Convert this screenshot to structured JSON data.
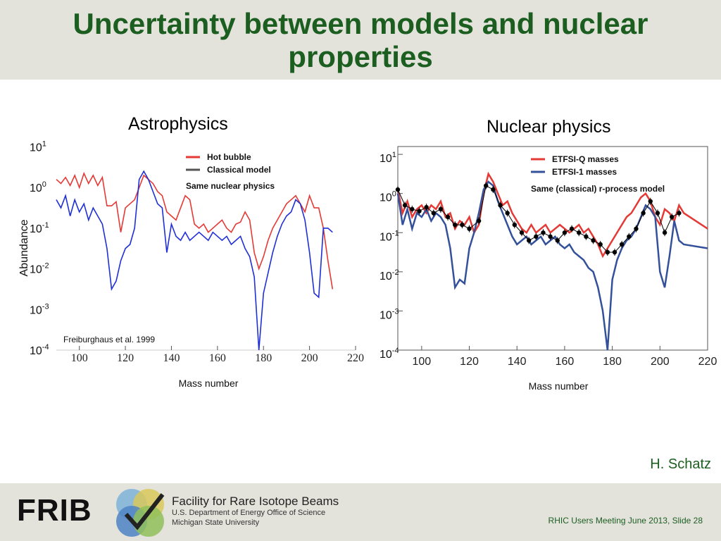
{
  "slide": {
    "title": "Uncertainty between models and nuclear properties",
    "author": "H. Schatz",
    "footer_note": "RHIC Users Meeting June 2013, Slide 28",
    "logo": {
      "text": "FRIB",
      "line1": "Facility for Rare Isotope Beams",
      "line2": "U.S. Department of Energy Office of Science",
      "line3": "Michigan State University"
    },
    "colors": {
      "title": "#1b5e20",
      "band": "#e3e3dc",
      "red": "#e53935",
      "blue": "#1f2fd6",
      "navy": "#33509a"
    }
  },
  "chart_data": [
    {
      "type": "line",
      "title": "Astrophysics",
      "ylabel": "Abundance",
      "xlabel": "Mass number",
      "xlim": [
        90,
        220
      ],
      "ylim_log10": [
        -4,
        1.2
      ],
      "x_ticks": [
        "100",
        "120",
        "140",
        "160",
        "180",
        "200",
        "220"
      ],
      "y_ticks": [
        {
          "base": "10",
          "exp": "1"
        },
        {
          "base": "10",
          "exp": "0"
        },
        {
          "base": "10",
          "exp": "-1"
        },
        {
          "base": "10",
          "exp": "-2"
        },
        {
          "base": "10",
          "exp": "-3"
        },
        {
          "base": "10",
          "exp": "-4"
        }
      ],
      "legend": [
        "Hot bubble",
        "Classical model"
      ],
      "note": "Same nuclear physics",
      "citation": "Freiburghaus et al. 1999",
      "series": [
        {
          "name": "Hot bubble",
          "color": "#e53935",
          "x": [
            90,
            92,
            94,
            96,
            98,
            100,
            102,
            104,
            106,
            108,
            110,
            112,
            114,
            116,
            118,
            120,
            122,
            124,
            126,
            128,
            130,
            132,
            134,
            136,
            138,
            140,
            142,
            144,
            146,
            148,
            150,
            152,
            154,
            156,
            158,
            160,
            162,
            164,
            166,
            168,
            170,
            172,
            174,
            176,
            178,
            180,
            182,
            184,
            186,
            188,
            190,
            192,
            194,
            196,
            198,
            200,
            202,
            204,
            206,
            208,
            210
          ],
          "y": [
            0.2,
            0.1,
            0.25,
            0.05,
            0.3,
            0.0,
            0.35,
            0.1,
            0.3,
            0.05,
            0.25,
            -0.45,
            -0.45,
            -0.35,
            -1.1,
            -0.5,
            -0.4,
            -0.3,
            0.0,
            0.3,
            0.2,
            0.1,
            -0.1,
            -0.2,
            -0.6,
            -0.7,
            -0.8,
            -0.5,
            -0.2,
            -0.3,
            -0.9,
            -1.0,
            -0.9,
            -1.1,
            -1.0,
            -0.9,
            -0.8,
            -1.0,
            -1.1,
            -0.9,
            -0.85,
            -0.6,
            -0.8,
            -1.6,
            -2.0,
            -1.7,
            -1.3,
            -1.0,
            -0.8,
            -0.6,
            -0.4,
            -0.3,
            -0.2,
            -0.4,
            -0.6,
            -0.2,
            -0.5,
            -0.5,
            -1.0,
            -1.8,
            -2.5
          ]
        },
        {
          "name": "Classical model",
          "color": "#1f2fd6",
          "x": [
            90,
            92,
            94,
            96,
            98,
            100,
            102,
            104,
            106,
            108,
            110,
            112,
            114,
            116,
            118,
            120,
            122,
            124,
            126,
            128,
            130,
            132,
            134,
            136,
            138,
            140,
            142,
            144,
            146,
            148,
            150,
            152,
            154,
            156,
            158,
            160,
            162,
            164,
            166,
            168,
            170,
            172,
            174,
            176,
            178,
            180,
            182,
            184,
            186,
            188,
            190,
            192,
            194,
            196,
            198,
            200,
            202,
            204,
            206,
            208,
            210
          ],
          "y": [
            -0.3,
            -0.5,
            -0.2,
            -0.7,
            -0.3,
            -0.6,
            -0.4,
            -0.8,
            -0.5,
            -0.7,
            -0.9,
            -1.5,
            -2.5,
            -2.3,
            -1.8,
            -1.5,
            -1.4,
            -1.0,
            0.2,
            0.4,
            0.2,
            -0.1,
            -0.4,
            -0.5,
            -1.6,
            -0.9,
            -1.2,
            -1.3,
            -1.1,
            -1.3,
            -1.2,
            -1.1,
            -1.2,
            -1.3,
            -1.1,
            -1.2,
            -1.3,
            -1.2,
            -1.4,
            -1.3,
            -1.2,
            -1.5,
            -1.7,
            -2.2,
            -4.0,
            -2.6,
            -2.1,
            -1.6,
            -1.2,
            -0.9,
            -0.7,
            -0.6,
            -0.3,
            -0.4,
            -0.8,
            -1.6,
            -2.6,
            -2.7,
            -1.0,
            -1.0,
            -1.1
          ]
        }
      ]
    },
    {
      "type": "line",
      "title": "Nuclear physics",
      "xlabel": "Mass number",
      "xlim": [
        90,
        220
      ],
      "ylim_log10": [
        -4,
        1.2
      ],
      "x_ticks": [
        "100",
        "120",
        "140",
        "160",
        "180",
        "200",
        "220"
      ],
      "y_ticks": [
        {
          "base": "10",
          "exp": "1"
        },
        {
          "base": "10",
          "exp": "0"
        },
        {
          "base": "10",
          "exp": "-1"
        },
        {
          "base": "10",
          "exp": "-2"
        },
        {
          "base": "10",
          "exp": "-3"
        },
        {
          "base": "10",
          "exp": "-4"
        }
      ],
      "legend": [
        "ETFSI-Q masses",
        "ETFSI-1 masses"
      ],
      "note": "Same (classical) r-process model",
      "series": [
        {
          "name": "ETFSI-Q masses",
          "color": "#e53935",
          "x": [
            90,
            92,
            94,
            96,
            98,
            100,
            102,
            104,
            106,
            108,
            110,
            112,
            114,
            116,
            118,
            120,
            122,
            124,
            126,
            128,
            130,
            132,
            134,
            136,
            138,
            140,
            142,
            144,
            146,
            148,
            150,
            152,
            154,
            156,
            158,
            160,
            162,
            164,
            166,
            168,
            170,
            172,
            174,
            176,
            178,
            180,
            182,
            184,
            186,
            188,
            190,
            192,
            194,
            196,
            198,
            200,
            202,
            204,
            206,
            208,
            210,
            220
          ],
          "y": [
            0.1,
            -0.5,
            -0.2,
            -0.6,
            -0.4,
            -0.3,
            -0.5,
            -0.3,
            -0.4,
            -0.2,
            -0.6,
            -0.5,
            -0.9,
            -0.7,
            -0.8,
            -0.6,
            -1.0,
            -0.8,
            0.0,
            0.5,
            0.3,
            0.0,
            -0.3,
            -0.2,
            -0.5,
            -0.7,
            -0.9,
            -1.0,
            -0.8,
            -1.0,
            -0.9,
            -0.8,
            -1.0,
            -0.9,
            -0.8,
            -0.9,
            -1.0,
            -0.9,
            -0.8,
            -1.0,
            -0.9,
            -1.1,
            -1.3,
            -1.6,
            -1.4,
            -1.2,
            -1.0,
            -0.8,
            -0.6,
            -0.5,
            -0.3,
            -0.1,
            0.0,
            -0.2,
            -0.6,
            -0.8,
            -0.4,
            -0.5,
            -0.7,
            -0.3,
            -0.5,
            -0.9
          ]
        },
        {
          "name": "ETFSI-1 masses",
          "color": "#33509a",
          "x": [
            90,
            92,
            94,
            96,
            98,
            100,
            102,
            104,
            106,
            108,
            110,
            112,
            114,
            116,
            118,
            120,
            122,
            124,
            126,
            128,
            130,
            132,
            134,
            136,
            138,
            140,
            142,
            144,
            146,
            148,
            150,
            152,
            154,
            156,
            158,
            160,
            162,
            164,
            166,
            168,
            170,
            172,
            174,
            176,
            178,
            180,
            182,
            184,
            186,
            188,
            190,
            192,
            194,
            196,
            198,
            200,
            202,
            204,
            206,
            208,
            210,
            220
          ],
          "y": [
            0.0,
            -0.8,
            -0.4,
            -0.9,
            -0.5,
            -0.6,
            -0.4,
            -0.7,
            -0.5,
            -0.6,
            -0.8,
            -1.4,
            -2.4,
            -2.2,
            -2.3,
            -1.4,
            -1.0,
            -0.5,
            0.1,
            0.3,
            0.2,
            -0.2,
            -0.5,
            -0.8,
            -1.1,
            -1.3,
            -1.2,
            -1.1,
            -1.3,
            -1.2,
            -1.1,
            -1.3,
            -1.2,
            -1.1,
            -1.3,
            -1.4,
            -1.3,
            -1.5,
            -1.6,
            -1.7,
            -1.9,
            -2.0,
            -2.4,
            -3.0,
            -4.0,
            -2.2,
            -1.7,
            -1.4,
            -1.2,
            -1.1,
            -0.9,
            -0.6,
            -0.3,
            -0.4,
            -0.6,
            -2.0,
            -2.4,
            -1.6,
            -0.7,
            -1.2,
            -1.3,
            -1.4
          ]
        },
        {
          "name": "",
          "color": "#000000",
          "x": [
            90,
            93,
            96,
            99,
            102,
            105,
            108,
            111,
            114,
            117,
            120,
            124,
            127,
            130,
            133,
            136,
            139,
            142,
            145,
            148,
            151,
            154,
            157,
            160,
            163,
            166,
            169,
            172,
            175,
            178,
            181,
            184,
            187,
            190,
            193,
            196,
            199,
            202,
            205,
            208
          ],
          "y": [
            0.1,
            -0.3,
            -0.4,
            -0.45,
            -0.35,
            -0.5,
            -0.4,
            -0.6,
            -0.8,
            -0.8,
            -0.9,
            -0.7,
            0.2,
            0.1,
            -0.3,
            -0.5,
            -0.8,
            -1.0,
            -1.2,
            -1.1,
            -1.0,
            -1.1,
            -1.2,
            -1.0,
            -0.9,
            -1.0,
            -1.1,
            -1.2,
            -1.3,
            -1.5,
            -1.5,
            -1.3,
            -1.1,
            -0.9,
            -0.5,
            -0.2,
            -0.5,
            -1.0,
            -0.6,
            -0.5
          ]
        }
      ]
    }
  ]
}
